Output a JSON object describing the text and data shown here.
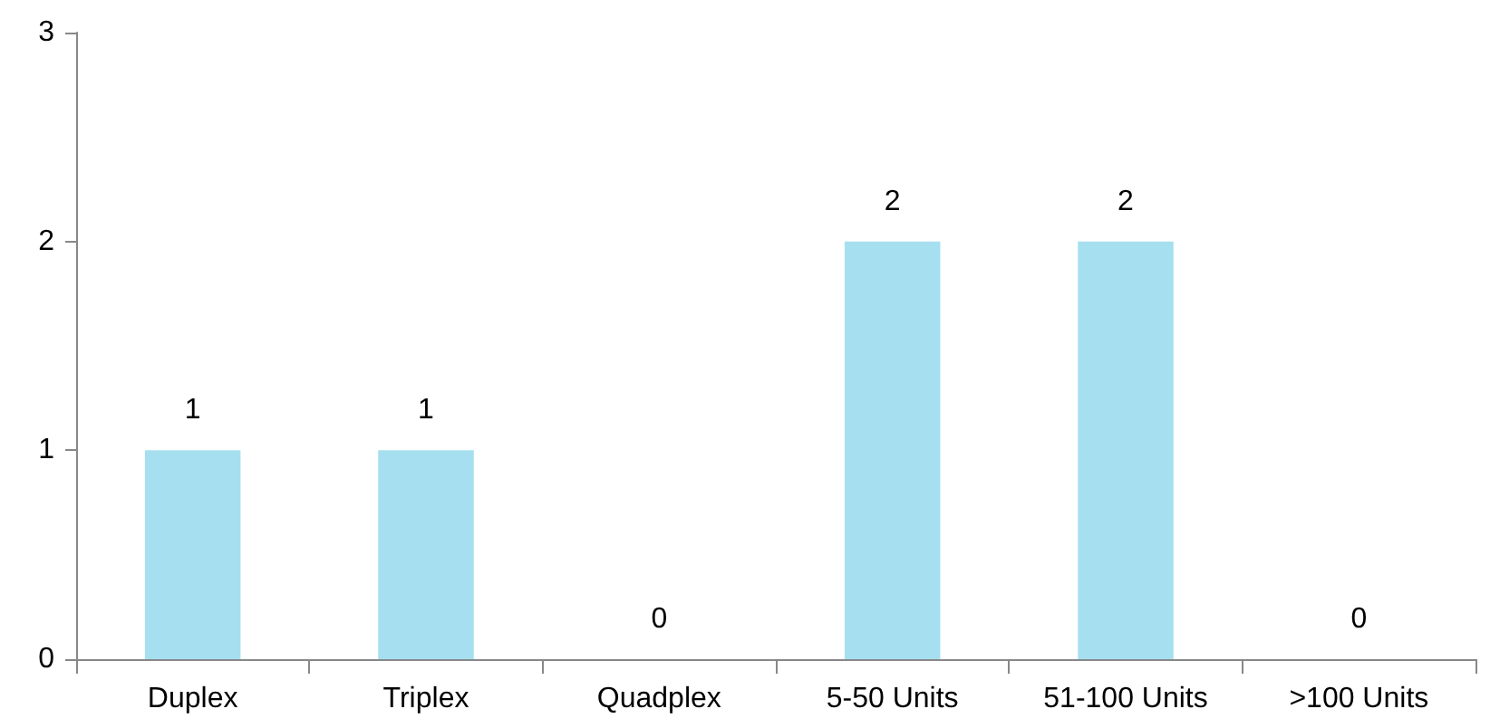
{
  "chart_data": {
    "type": "bar",
    "categories": [
      "Duplex",
      "Triplex",
      "Quadplex",
      "5-50 Units",
      "51-100 Units",
      ">100 Units"
    ],
    "values": [
      1,
      1,
      0,
      2,
      2,
      0
    ],
    "color": "#a6dff0",
    "ylim": [
      0,
      3
    ],
    "yticks": [
      0,
      1,
      2,
      3
    ],
    "grid": false,
    "data_labels": true
  }
}
